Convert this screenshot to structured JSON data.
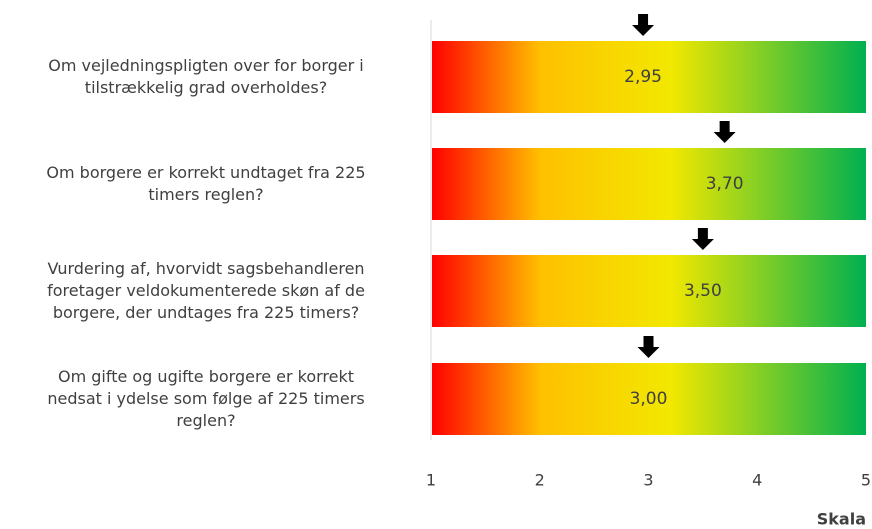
{
  "chart_data": {
    "type": "marker",
    "categories": [
      "Om vejledningspligten over for borger i\ntilstrækkelig grad overholdes?",
      "Om borgere er korrekt undtaget fra 225\ntimers reglen?",
      "Vurdering af, hvorvidt sagsbehandleren\nforetager veldokumenterede skøn af de\nborgere, der undtages fra 225 timers?",
      "Om gifte og ugifte borgere er korrekt\nnedsat i ydelse som følge af 225 timers\nreglen?"
    ],
    "values": [
      2.95,
      3.7,
      3.5,
      3.0
    ],
    "value_labels": [
      "2,95",
      "3,70",
      "3,50",
      "3,00"
    ],
    "xlim": [
      1,
      5
    ],
    "xticks": [
      1,
      2,
      3,
      4,
      5
    ],
    "xlabel": "Skala",
    "color": "#000000"
  }
}
